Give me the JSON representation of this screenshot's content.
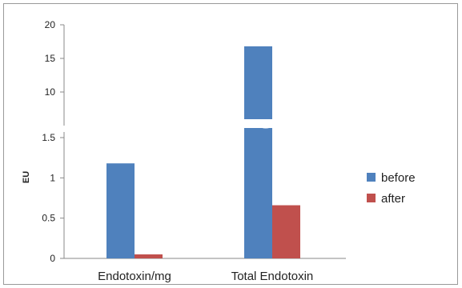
{
  "chart_data": {
    "type": "bar",
    "title": "",
    "xlabel": "",
    "ylabel": "EU",
    "broken_axis": true,
    "lower_axis": {
      "ylim": [
        0,
        1.5
      ],
      "ticks": [
        "0",
        "0.5",
        "1",
        "1.5"
      ]
    },
    "upper_axis": {
      "ylim": [
        5,
        20
      ],
      "ticks": [
        "10",
        "15",
        "20"
      ]
    },
    "categories": [
      "Endotoxin/mg",
      "Total Endotoxin"
    ],
    "series": [
      {
        "name": "before",
        "color": "#4f81bd",
        "values": [
          1.18,
          16.8
        ]
      },
      {
        "name": "after",
        "color": "#c0504d",
        "values": [
          0.05,
          0.66
        ]
      }
    ],
    "legend_position": "right",
    "grid": false
  }
}
